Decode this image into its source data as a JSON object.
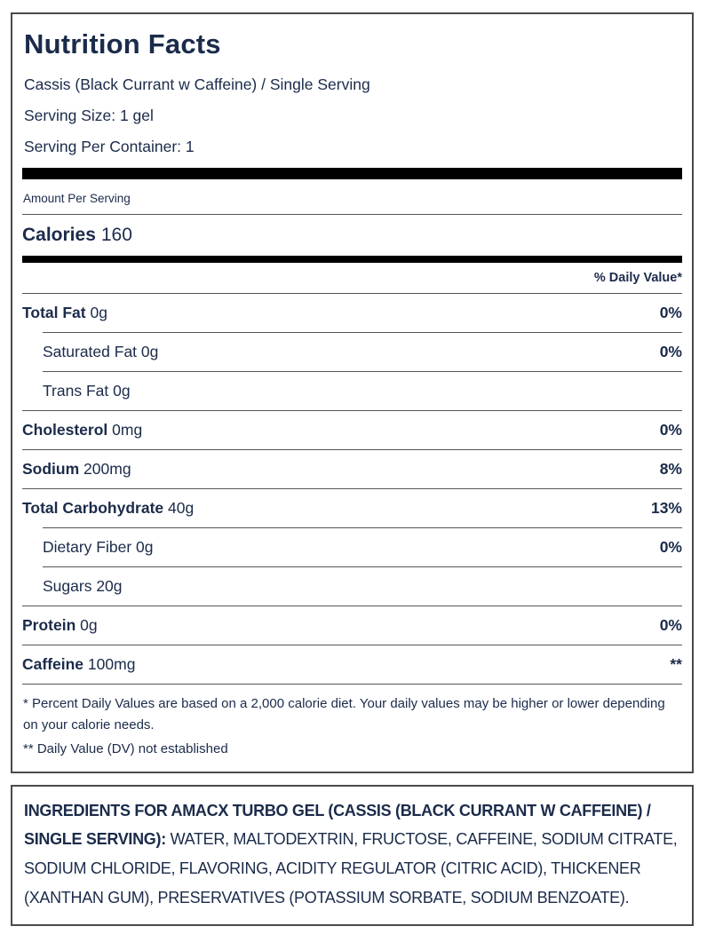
{
  "colors": {
    "text_navy": "#1b2b4a",
    "separator_black": "#000000",
    "box_border_gray": "#4a4a4a"
  },
  "label": {
    "title": "Nutrition Facts",
    "flavor": "Cassis (Black Currant w Caffeine) / Single Serving",
    "serving_size": "Serving Size: 1 gel",
    "servings_per_container": "Serving Per Container: 1",
    "amount_per_serving": "Amount Per Serving",
    "calories_label": "Calories",
    "calories_value": "160",
    "daily_value_header": "% Daily Value*",
    "rows": [
      {
        "label": "Total Fat",
        "amount": "0g",
        "dv": "0%"
      },
      {
        "label": "Saturated Fat",
        "amount": "0g",
        "dv": "0%"
      },
      {
        "label": "Trans Fat",
        "amount": "0g",
        "dv": ""
      },
      {
        "label": "Cholesterol",
        "amount": "0mg",
        "dv": "0%"
      },
      {
        "label": "Sodium",
        "amount": "200mg",
        "dv": "8%"
      },
      {
        "label": "Total Carbohydrate",
        "amount": "40g",
        "dv": "13%"
      },
      {
        "label": "Dietary Fiber",
        "amount": "0g",
        "dv": "0%"
      },
      {
        "label": "Sugars",
        "amount": "20g",
        "dv": ""
      },
      {
        "label": "Protein",
        "amount": "0g",
        "dv": "0%"
      },
      {
        "label": "Caffeine",
        "amount": "100mg",
        "dv": "**"
      }
    ],
    "footnote_percent": "* Percent Daily Values are based on a 2,000 calorie diet. Your daily values may be higher or lower depending on your calorie needs.",
    "footnote_dv": "** Daily Value (DV) not established"
  },
  "ingredients": {
    "heading": "INGREDIENTS FOR AMACX TURBO GEL (CASSIS (BLACK CURRANT W CAFFEINE) / SINGLE SERVING):",
    "list": "WATER, MALTODEXTRIN, FRUCTOSE, CAFFEINE, SODIUM CITRATE, SODIUM CHLORIDE, FLAVORING, ACIDITY REGULATOR (CITRIC ACID), THICKENER (XANTHAN GUM), PRESERVATIVES (POTASSIUM SORBATE, SODIUM BENZOATE)."
  }
}
